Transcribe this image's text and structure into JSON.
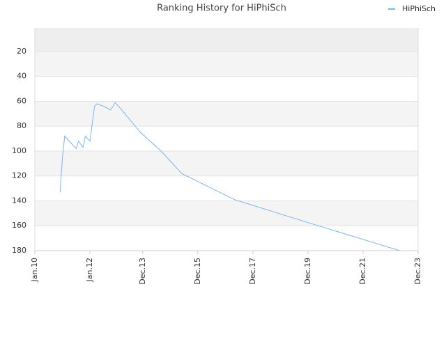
{
  "chart_data": {
    "type": "line",
    "title": "Ranking History for HiPhiSch",
    "x": [
      "2010-12",
      "2011-01",
      "2011-02",
      "2011-05",
      "2011-07",
      "2011-08",
      "2011-10",
      "2011-11",
      "2012-01",
      "2012-03",
      "2012-04",
      "2012-07",
      "2012-10",
      "2012-12",
      "2013-02",
      "2013-11",
      "2014-08",
      "2015-05",
      "2016-05",
      "2017-04",
      "2020-01",
      "2023-04"
    ],
    "series": [
      {
        "name": "HiPhiSch",
        "color": "#7cb5ec",
        "values": [
          133,
          106,
          88,
          94,
          98,
          92,
          97,
          88,
          92,
          64,
          62,
          64,
          67,
          61,
          65,
          85,
          100,
          118,
          129,
          139,
          158,
          180
        ]
      }
    ],
    "xlim": [
      "2010-01",
      "2023-12"
    ],
    "xticks": [
      {
        "value": "2010-01",
        "label": "Jan.10"
      },
      {
        "value": "2012-01",
        "label": "Jan.12"
      },
      {
        "value": "2013-12",
        "label": "Dec.13"
      },
      {
        "value": "2015-12",
        "label": "Dec.15"
      },
      {
        "value": "2017-12",
        "label": "Dec.17"
      },
      {
        "value": "2019-12",
        "label": "Dec.19"
      },
      {
        "value": "2021-12",
        "label": "Dec.21"
      },
      {
        "value": "2023-12",
        "label": "Dec.23"
      }
    ],
    "ylim": [
      180,
      1
    ],
    "yticks": [
      20,
      40,
      60,
      80,
      100,
      120,
      140,
      160,
      180
    ],
    "grid": true,
    "legend": "top-right"
  }
}
